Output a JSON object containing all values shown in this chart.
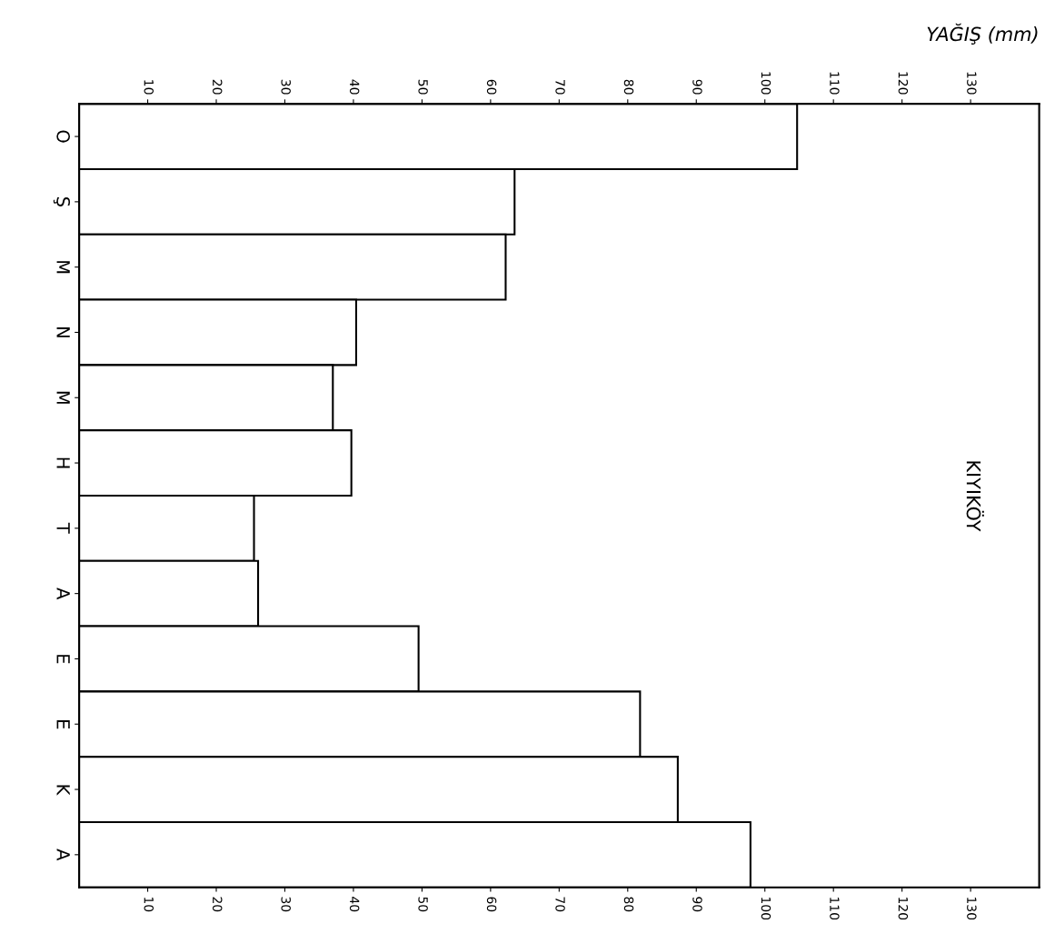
{
  "chart_data": {
    "type": "bar",
    "orientation": "horizontal",
    "title": "KIYIKÖY",
    "xlabel": "YAĞIŞ (mm)",
    "categories": [
      "O",
      "Ş",
      "M",
      "N",
      "M",
      "H",
      "T",
      "A",
      "E",
      "E",
      "K",
      "A"
    ],
    "values": [
      104.7,
      63.5,
      62.2,
      40.4,
      37.0,
      39.7,
      25.5,
      26.1,
      49.5,
      81.8,
      87.3,
      97.9
    ],
    "color": "#ffffff",
    "xlim": [
      0,
      140
    ],
    "xticks": [
      10,
      20,
      30,
      40,
      50,
      60,
      70,
      80,
      90,
      100,
      110,
      120,
      130
    ],
    "x2lim": [
      0,
      140
    ],
    "x2ticks": [
      10,
      20,
      30,
      40,
      50,
      60,
      70,
      80,
      90,
      100,
      110,
      120,
      130
    ],
    "grid": false
  }
}
